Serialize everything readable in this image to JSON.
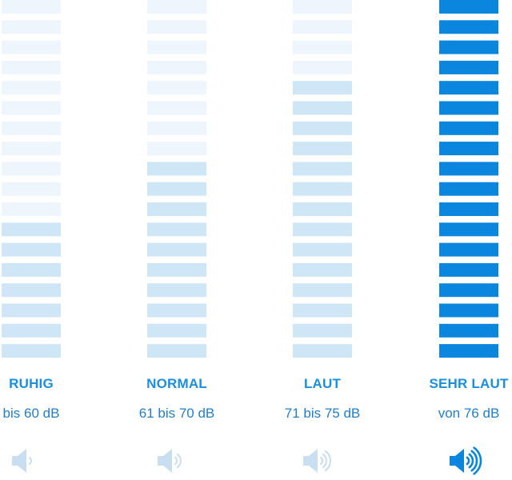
{
  "colors": {
    "active": "#0a86de",
    "inactive_light": "#eef5fd",
    "inactive_medium": "#cfe6f7",
    "muted_icon": "#c9def1",
    "label": "#1a8fe0",
    "range": "#1f7fcb"
  },
  "levels": [
    {
      "label": "RUHIG",
      "range": "bis 60 dB",
      "lit_bars": 7,
      "active": false,
      "icon": "speaker-one-wave-icon"
    },
    {
      "label": "NORMAL",
      "range": "61 bis 70 dB",
      "lit_bars": 10,
      "active": false,
      "icon": "speaker-two-waves-icon"
    },
    {
      "label": "LAUT",
      "range": "71 bis 75 dB",
      "lit_bars": 14,
      "active": false,
      "icon": "speaker-three-waves-icon"
    },
    {
      "label": "SEHR LAUT",
      "range": "von 76 dB",
      "lit_bars": 18,
      "active": true,
      "icon": "speaker-four-waves-icon"
    }
  ],
  "total_bars": 18
}
